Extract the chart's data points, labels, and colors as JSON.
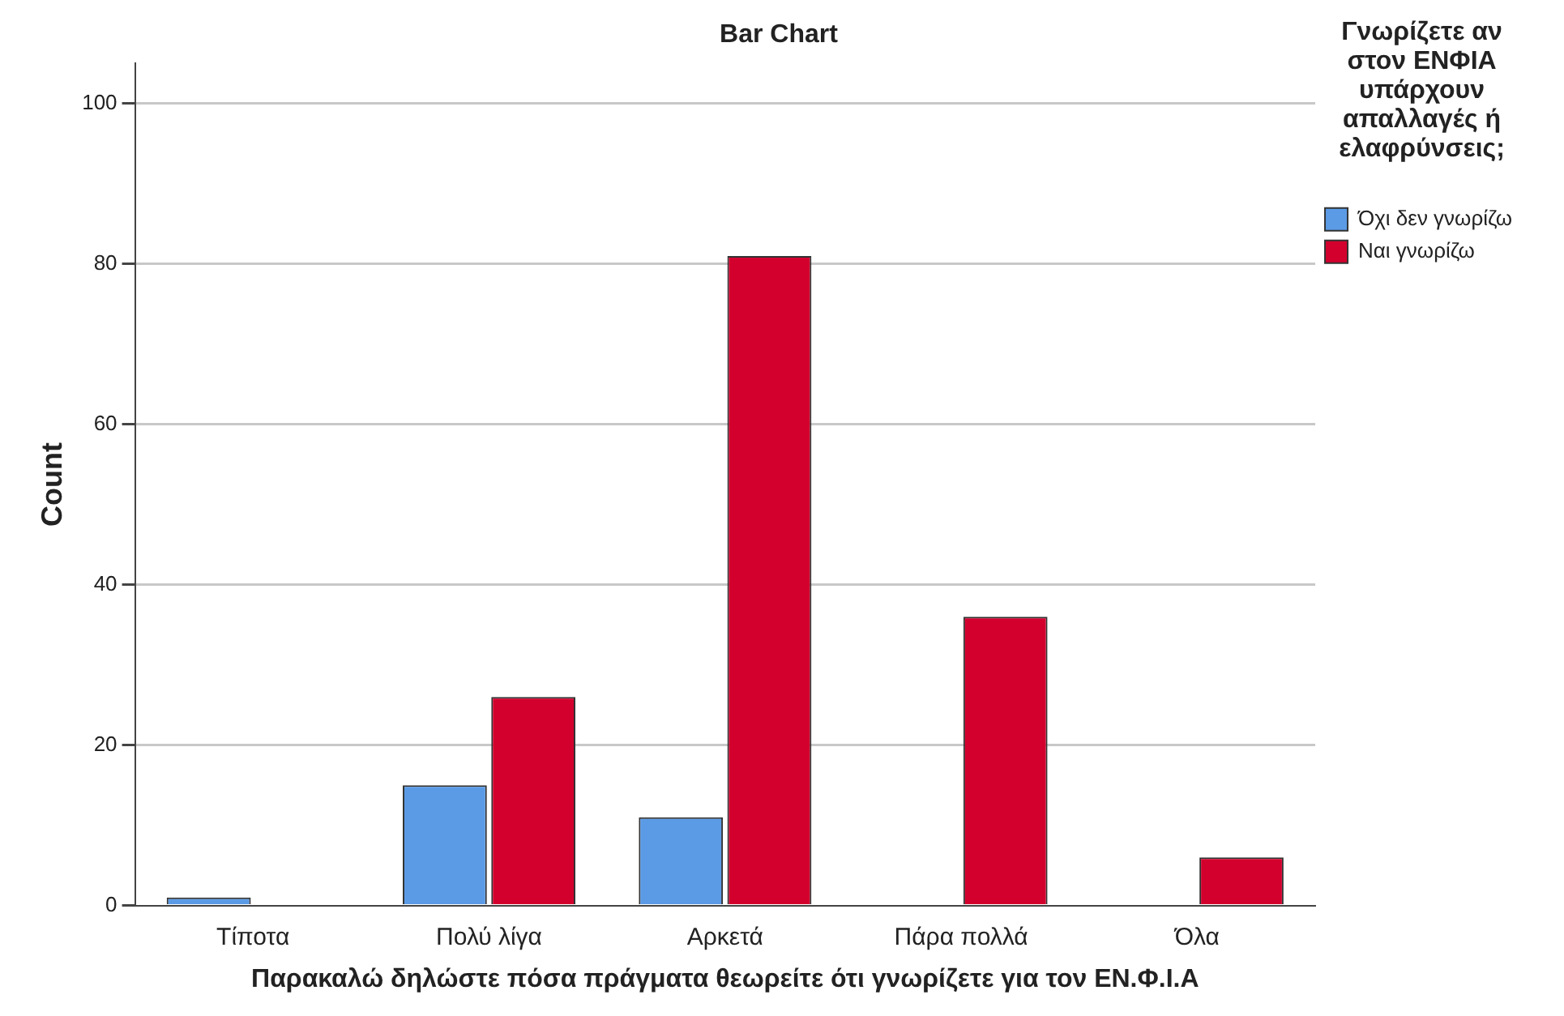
{
  "chart_data": {
    "type": "bar",
    "title": "Bar Chart",
    "xlabel": "Παρακαλώ δηλώστε πόσα πράγματα θεωρείτε ότι γνωρίζετε για τον ΕΝ.Φ.Ι.Α",
    "ylabel": "Count",
    "legend_title": "Γνωρίζετε αν στον ΕΝΦΙΑ υπάρχουν απαλλαγές ή ελαφρύνσεις;",
    "categories": [
      "Τίποτα",
      "Πολύ λίγα",
      "Αρκετά",
      "Πάρα πολλά",
      "Όλα"
    ],
    "series": [
      {
        "name": "Όχι δεν γνωρίζω",
        "color": "#5b9be6",
        "values": [
          1,
          15,
          11,
          null,
          null
        ]
      },
      {
        "name": "Ναι γνωρίζω",
        "color": "#d3002e",
        "values": [
          null,
          26,
          81,
          36,
          6
        ]
      }
    ],
    "ylim": [
      0,
      105
    ],
    "yticks": [
      0,
      20,
      40,
      60,
      80,
      100
    ],
    "grid": "y",
    "legend": "right"
  }
}
